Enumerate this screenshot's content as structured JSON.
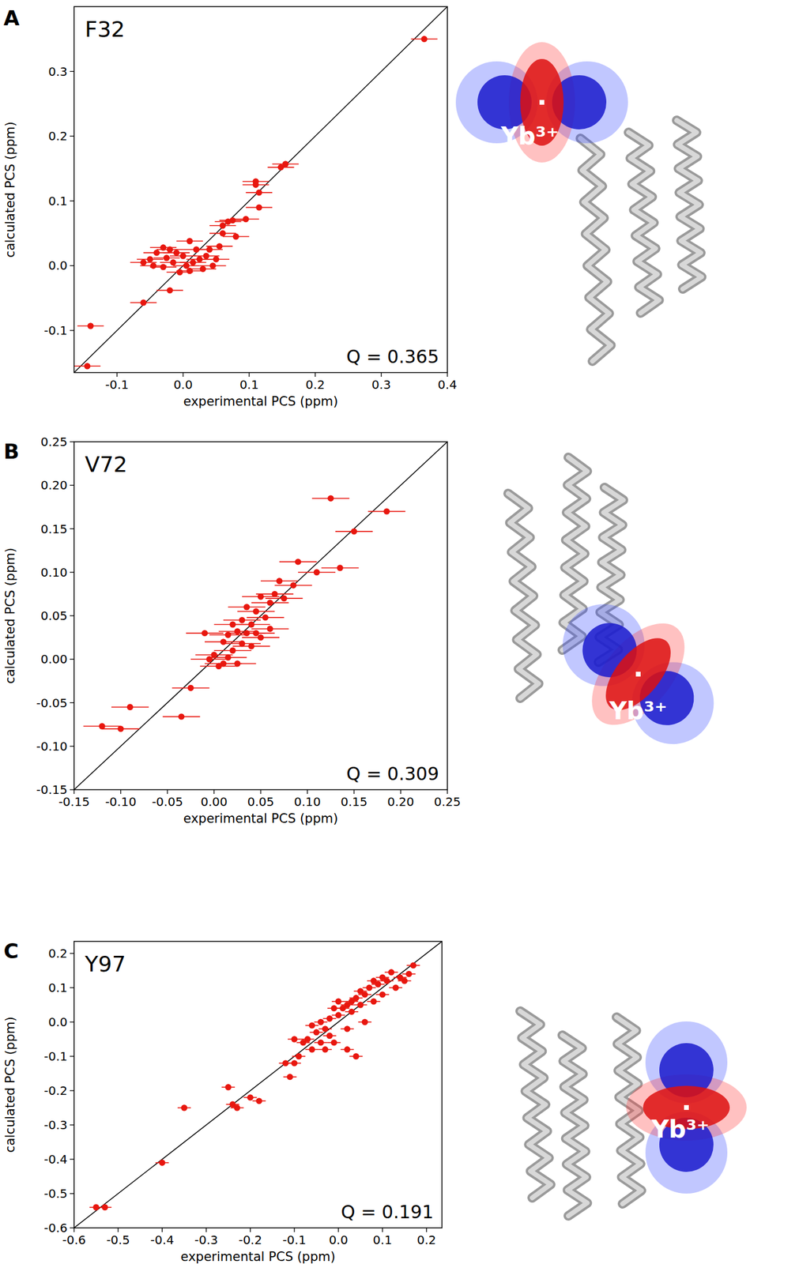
{
  "chart_data": [
    {
      "type": "scatter",
      "panel": "A",
      "title": "F32",
      "x_label": "experimental PCS (ppm)",
      "y_label": "calculated PCS (ppm)",
      "annotation": "Q = 0.365",
      "ion_label": "Yb³⁺",
      "color": "#e8170f",
      "marker": "circle",
      "xlim": [
        -0.165,
        0.4
      ],
      "ylim": [
        -0.165,
        0.4
      ],
      "xticks": [
        -0.1,
        {
          "value": 0,
          "label": "0.0"
        },
        0.1,
        0.2,
        0.3,
        0.4
      ],
      "yticks": [
        -0.1,
        {
          "value": 0,
          "label": "0.0"
        },
        0.1,
        0.2,
        0.3
      ],
      "x": [
        0.365,
        0.155,
        0.148,
        0.11,
        0.11,
        0.115,
        0.115,
        0.095,
        0.068,
        0.06,
        0.075,
        0.06,
        0.08,
        0.055,
        0.04,
        0.01,
        -0.03,
        -0.02,
        -0.04,
        -0.01,
        0.02,
        0.0,
        -0.05,
        -0.06,
        -0.045,
        -0.03,
        -0.015,
        0.005,
        0.015,
        0.025,
        0.03,
        0.045,
        0.05,
        -0.025,
        0.01,
        -0.005,
        0.035,
        -0.02,
        -0.06,
        -0.14,
        -0.145
      ],
      "values": [
        0.35,
        0.157,
        0.152,
        0.13,
        0.125,
        0.113,
        0.09,
        0.072,
        0.068,
        0.062,
        0.07,
        0.05,
        0.045,
        0.03,
        0.025,
        0.038,
        0.028,
        0.025,
        0.02,
        0.02,
        0.025,
        0.015,
        0.01,
        0.005,
        0.0,
        -0.002,
        0.005,
        0.0,
        0.005,
        0.01,
        -0.005,
        0.0,
        0.01,
        0.012,
        -0.008,
        -0.01,
        0.015,
        -0.038,
        -0.057,
        -0.093,
        -0.155
      ],
      "x_error": [
        0.02,
        0.02,
        0.02,
        0.02,
        0.02,
        0.02,
        0.02,
        0.02,
        0.02,
        0.02,
        0.02,
        0.02,
        0.02,
        0.02,
        0.02,
        0.02,
        0.02,
        0.02,
        0.02,
        0.02,
        0.02,
        0.02,
        0.02,
        0.02,
        0.02,
        0.02,
        0.02,
        0.02,
        0.02,
        0.02,
        0.02,
        0.02,
        0.02,
        0.02,
        0.02,
        0.02,
        0.02,
        0.02,
        0.02,
        0.02,
        0.02
      ]
    },
    {
      "type": "scatter",
      "panel": "B",
      "title": "V72",
      "x_label": "experimental PCS (ppm)",
      "y_label": "calculated PCS (ppm)",
      "annotation": "Q = 0.309",
      "ion_label": "Yb³⁺",
      "color": "#e8170f",
      "marker": "circle",
      "xlim": [
        -0.15,
        0.25
      ],
      "ylim": [
        -0.15,
        0.25
      ],
      "xticks": [
        -0.15,
        {
          "value": -0.1,
          "label": "-0.10"
        },
        -0.05,
        {
          "value": 0,
          "label": "0.00"
        },
        0.05,
        {
          "value": 0.1,
          "label": "0.10"
        },
        0.15,
        {
          "value": 0.2,
          "label": "0.20"
        },
        0.25
      ],
      "yticks": [
        -0.15,
        {
          "value": -0.1,
          "label": "-0.10"
        },
        -0.05,
        {
          "value": 0,
          "label": "0.00"
        },
        0.05,
        {
          "value": 0.1,
          "label": "0.10"
        },
        0.15,
        {
          "value": 0.2,
          "label": "0.20"
        },
        0.25
      ],
      "x": [
        0.185,
        0.125,
        0.15,
        0.135,
        0.09,
        0.11,
        0.085,
        0.07,
        0.065,
        0.075,
        0.05,
        0.06,
        0.035,
        0.045,
        0.055,
        0.03,
        0.02,
        0.04,
        0.025,
        0.035,
        0.045,
        0.05,
        0.015,
        0.01,
        0.03,
        0.04,
        0.06,
        0.02,
        -0.01,
        0.0,
        0.01,
        0.005,
        0.025,
        -0.005,
        0.015,
        -0.025,
        -0.035,
        -0.09,
        -0.1,
        -0.12
      ],
      "values": [
        0.17,
        0.185,
        0.147,
        0.105,
        0.112,
        0.1,
        0.085,
        0.09,
        0.075,
        0.07,
        0.072,
        0.065,
        0.06,
        0.055,
        0.048,
        0.045,
        0.04,
        0.04,
        0.032,
        0.03,
        0.03,
        0.025,
        0.028,
        0.02,
        0.018,
        0.015,
        0.035,
        0.01,
        0.03,
        0.005,
        -0.005,
        -0.008,
        -0.005,
        0.0,
        0.002,
        -0.033,
        -0.066,
        -0.055,
        -0.08,
        -0.077
      ],
      "x_error": [
        0.02,
        0.02,
        0.02,
        0.02,
        0.02,
        0.02,
        0.02,
        0.02,
        0.02,
        0.02,
        0.02,
        0.02,
        0.02,
        0.02,
        0.02,
        0.02,
        0.02,
        0.02,
        0.02,
        0.02,
        0.02,
        0.02,
        0.02,
        0.02,
        0.02,
        0.02,
        0.02,
        0.02,
        0.02,
        0.02,
        0.02,
        0.02,
        0.02,
        0.02,
        0.02,
        0.02,
        0.02,
        0.02,
        0.02,
        0.02
      ]
    },
    {
      "type": "scatter",
      "panel": "C",
      "title": "Y97",
      "x_label": "experimental PCS (ppm)",
      "y_label": "calculated PCS (ppm)",
      "annotation": "Q = 0.191",
      "ion_label": "Yb³⁺",
      "color": "#e8170f",
      "marker": "circle",
      "xlim": [
        -0.6,
        0.235
      ],
      "ylim": [
        -0.6,
        0.235
      ],
      "xticks": [
        -0.6,
        -0.5,
        -0.4,
        -0.3,
        -0.2,
        -0.1,
        {
          "value": 0,
          "label": "0.0"
        },
        0.1,
        0.2
      ],
      "yticks": [
        -0.6,
        -0.5,
        -0.4,
        -0.3,
        -0.2,
        -0.1,
        {
          "value": 0,
          "label": "0.0"
        },
        0.1,
        0.2
      ],
      "x": [
        0.17,
        0.16,
        0.12,
        0.14,
        0.1,
        0.11,
        0.09,
        0.08,
        0.07,
        0.06,
        0.05,
        0.04,
        0.03,
        0.02,
        0.0,
        0.01,
        -0.01,
        0.0,
        0.03,
        0.05,
        -0.02,
        -0.04,
        -0.03,
        -0.06,
        -0.05,
        -0.02,
        -0.04,
        -0.07,
        -0.08,
        -0.1,
        -0.06,
        -0.03,
        -0.01,
        0.02,
        -0.09,
        -0.12,
        -0.1,
        -0.11,
        0.04,
        0.02,
        0.06,
        -0.25,
        -0.35,
        -0.24,
        -0.23,
        -0.2,
        -0.18,
        -0.4,
        -0.55,
        -0.53,
        0.08,
        0.1,
        0.13,
        0.15
      ],
      "values": [
        0.165,
        0.14,
        0.145,
        0.13,
        0.13,
        0.12,
        0.11,
        0.12,
        0.1,
        0.08,
        0.09,
        0.07,
        0.06,
        0.05,
        0.06,
        0.04,
        0.04,
        0.02,
        0.03,
        0.05,
        0.01,
        0.0,
        -0.02,
        -0.01,
        -0.03,
        -0.04,
        -0.06,
        -0.05,
        -0.06,
        -0.05,
        -0.08,
        -0.08,
        -0.06,
        -0.02,
        -0.1,
        -0.12,
        -0.12,
        -0.16,
        -0.1,
        -0.08,
        0.0,
        -0.19,
        -0.25,
        -0.24,
        -0.25,
        -0.22,
        -0.23,
        -0.41,
        -0.54,
        -0.54,
        0.06,
        0.08,
        0.1,
        0.12
      ],
      "x_error": [
        0.015,
        0.015,
        0.015,
        0.015,
        0.015,
        0.015,
        0.015,
        0.015,
        0.015,
        0.015,
        0.015,
        0.015,
        0.015,
        0.015,
        0.015,
        0.015,
        0.015,
        0.015,
        0.015,
        0.015,
        0.015,
        0.015,
        0.015,
        0.015,
        0.015,
        0.015,
        0.015,
        0.015,
        0.015,
        0.015,
        0.015,
        0.015,
        0.015,
        0.015,
        0.015,
        0.015,
        0.015,
        0.015,
        0.015,
        0.015,
        0.015,
        0.015,
        0.015,
        0.015,
        0.015,
        0.015,
        0.015,
        0.015,
        0.015,
        0.015,
        0.015,
        0.015,
        0.015,
        0.015
      ]
    }
  ]
}
